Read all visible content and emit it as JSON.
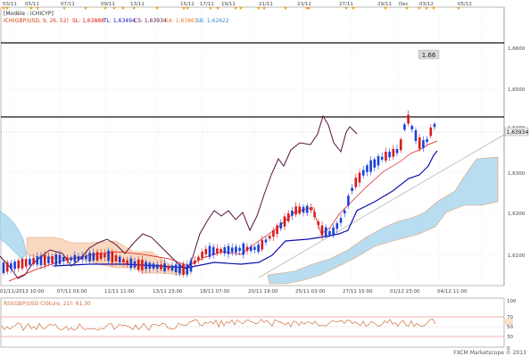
{
  "top_dates": [
    "03/11",
    "05/11",
    "07/11",
    "09/11",
    "13/11",
    "15/11",
    "17/11",
    "19/11",
    "21/11",
    "23/11",
    "27/11",
    "29/11",
    "Dec",
    "03/12",
    "05/12"
  ],
  "bottom_dates": [
    "01/11/2013 10:00",
    "07/11 03:00",
    "11/11 11:00",
    "13/11 23:00",
    "18/11 07:00",
    "20/11 19:00",
    "25/11 03:00",
    "27/11 15:00",
    "01/12 23:00",
    "04/12 11:00"
  ],
  "legend": {
    "model": "[Modèle : ICHICYP]",
    "ichimoku": "ICH(GBP/USD, 9, 26, 52)",
    "sl": "SL: 1,63888",
    "tl": "TL: 1,63494",
    "cs": "CS: 1,63934",
    "sa": "SA: 1,63861",
    "sb": "SB: 1,62622"
  },
  "price_axis": [
    "1,6600",
    "1,6500",
    "1,6400",
    "1,6300",
    "1,6200",
    "1,6100"
  ],
  "current_price": "1,63934",
  "level_label": "1.66",
  "rsi": {
    "label": "RSI(GBP/USD Clôture, 21): 61,30",
    "axis": [
      "100",
      "70",
      "50",
      "30",
      "0"
    ]
  },
  "watermark": "FXCM Marketscope © 2013",
  "colors": {
    "bull": "#1a3fd8",
    "bear": "#d81a1a",
    "tenkan": "#e01010",
    "kijun": "#1010b0",
    "chikou": "#5a1040",
    "cloud_up": "#b8dcf0",
    "cloud_down": "#f8d8c0"
  }
}
